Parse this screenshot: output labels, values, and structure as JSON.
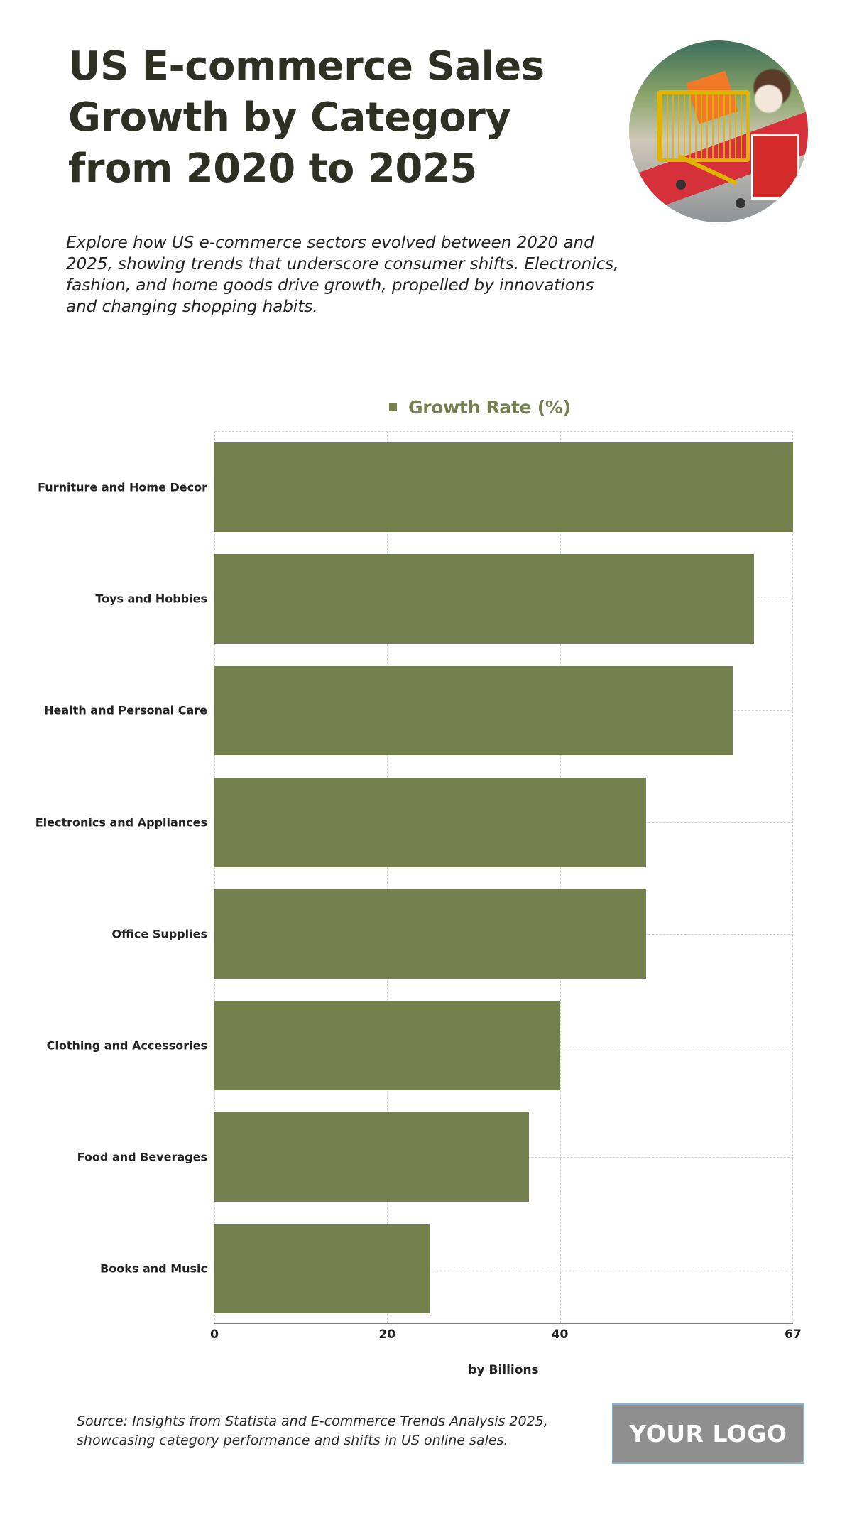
{
  "header": {
    "title": "US E-commerce Sales Growth by Category from 2020 to 2025",
    "subtitle": "Explore how US e-commerce sectors evolved between 2020 and 2025, showing trends that underscore consumer shifts. Electronics, fashion, and home goods drive growth, propelled by innovations and changing shopping habits.",
    "hero_image_alt": "child-pushing-yellow-shopping-cart-photo"
  },
  "colors": {
    "bar": "#75804f",
    "legend_text": "#75804f",
    "title": "#2e3024",
    "grid": "#d2d2d2",
    "axis": "#7f7f7f",
    "logo_bg": "#8f8f8f",
    "logo_border": "#86b4d4"
  },
  "chart_data": {
    "type": "bar",
    "orientation": "horizontal",
    "title": "",
    "legend": [
      {
        "name": "Growth Rate (%)",
        "color": "#75804f"
      }
    ],
    "legend_position": "top",
    "categories": [
      "Furniture and Home Decor",
      "Toys and Hobbies",
      "Health and Personal Care",
      "Electronics and Appliances",
      "Office Supplies",
      "Clothing and Accessories",
      "Food and Beverages",
      "Books and Music"
    ],
    "series": [
      {
        "name": "Growth Rate (%)",
        "values": [
          67,
          62.5,
          60,
          50,
          50,
          40,
          36.4,
          25
        ]
      }
    ],
    "xlabel": "by Billions",
    "ylabel": "",
    "xlim": [
      0,
      67
    ],
    "xticks": [
      0,
      20,
      40,
      67
    ],
    "xtick_labels": [
      "0",
      "20",
      "40",
      "67"
    ],
    "grid": true
  },
  "footer": {
    "source": "Source: Insights from Statista and E-commerce Trends Analysis 2025, showcasing category performance and shifts in US online sales.",
    "logo_text": "YOUR LOGO"
  }
}
